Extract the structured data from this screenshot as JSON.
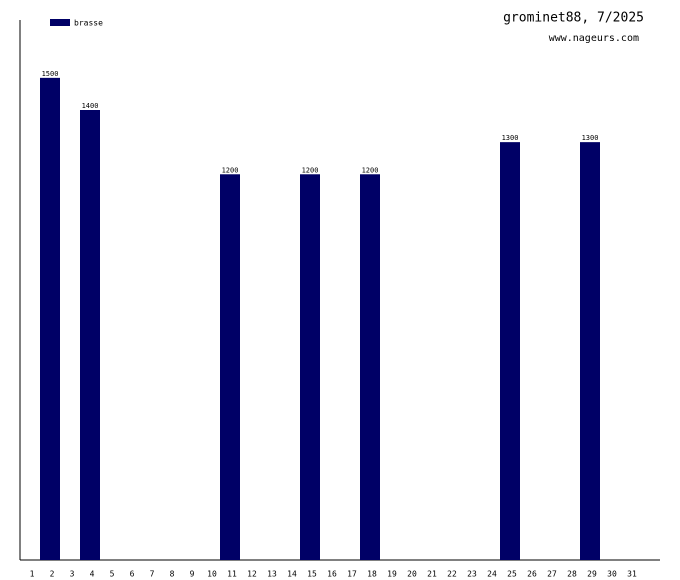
{
  "chart_data": {
    "type": "bar",
    "title": "grominet88, 7/2025",
    "subtitle": "www.nageurs.com",
    "categories": [
      "1",
      "2",
      "3",
      "4",
      "5",
      "6",
      "7",
      "8",
      "9",
      "10",
      "11",
      "12",
      "13",
      "14",
      "15",
      "16",
      "17",
      "18",
      "19",
      "20",
      "21",
      "22",
      "23",
      "24",
      "25",
      "26",
      "27",
      "28",
      "29",
      "30",
      "31"
    ],
    "series": [
      {
        "name": "brasse",
        "color": "#000066",
        "values": [
          null,
          1500,
          null,
          1400,
          null,
          null,
          null,
          null,
          null,
          null,
          1200,
          null,
          null,
          null,
          1200,
          null,
          null,
          1200,
          null,
          null,
          null,
          null,
          null,
          null,
          1300,
          null,
          null,
          null,
          1300,
          null,
          null
        ]
      }
    ],
    "ylim": [
      0,
      1680
    ]
  }
}
